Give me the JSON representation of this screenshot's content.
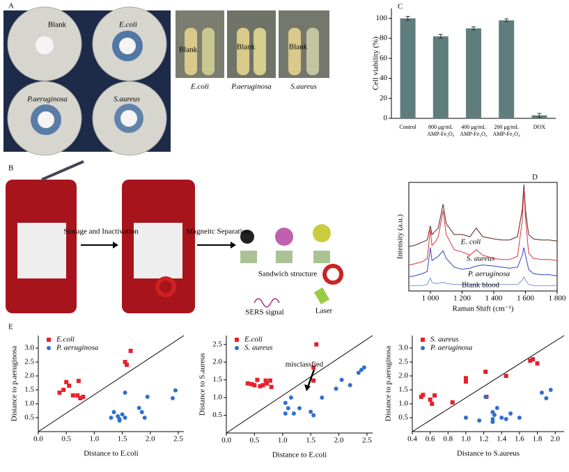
{
  "panel_labels": [
    "A",
    "B",
    "C",
    "D",
    "E"
  ],
  "photos": {
    "dishes": [
      "Blank",
      "E.coli",
      "P.aeruginosa",
      "S.aureus"
    ],
    "tubes": {
      "labels": [
        "Blank",
        "Blank",
        "Blank"
      ],
      "captions": [
        "E.coli",
        "P.aeruginosa",
        "S.aureus"
      ]
    }
  },
  "diagram": {
    "step1": "Storage and Inactivation",
    "step2": "Magneitc Separation",
    "structure": "Sandwich structure",
    "signal": "SERS signal",
    "laser": "Laser"
  },
  "chart_data": [
    {
      "type": "bar",
      "y_label": "Cell viability (%)",
      "categories": [
        "Control",
        "800 μg/mL AMP-Fe₃O₄",
        "400 μg/mL AMP-Fe₃O₄",
        "200 μg/mL AMP-Fe₃O₄",
        "DOX"
      ],
      "values": [
        100,
        82,
        90,
        98,
        3
      ],
      "errors": [
        2,
        2,
        1.5,
        1.5,
        2
      ],
      "color": "#607d7d",
      "ylim": [
        0,
        110
      ],
      "yticks": [
        0,
        20,
        40,
        60,
        80,
        100
      ]
    },
    {
      "type": "line",
      "x_label": "Raman Shift (cm⁻¹)",
      "y_label": "Intensity (a.u.)",
      "x": [
        864,
        900,
        950,
        980,
        1000,
        1010,
        1030,
        1050,
        1080,
        1100,
        1150,
        1200,
        1250,
        1290,
        1330,
        1400,
        1450,
        1500,
        1550,
        1580,
        1590,
        1600,
        1620,
        1650,
        1700,
        1750,
        1800
      ],
      "xlim": [
        864,
        1800
      ],
      "xticks": [
        {
          "value": 1000,
          "label": "1 000"
        },
        {
          "value": 1200,
          "label": "1 200"
        },
        {
          "value": 1400,
          "label": "1 400"
        },
        {
          "value": 1600,
          "label": "1 600"
        },
        {
          "value": 1800,
          "label": "1 800"
        }
      ],
      "ylim": [
        0,
        100
      ],
      "series": [
        {
          "name": "E. coli",
          "color": "#5a1e1e",
          "values": [
            41,
            42,
            45,
            47,
            60,
            52,
            55,
            58,
            80,
            62,
            52,
            52,
            50,
            58,
            50,
            48,
            47,
            47,
            50,
            75,
            98,
            75,
            52,
            48,
            47,
            47,
            46
          ]
        },
        {
          "name": "S. aureus",
          "color": "#e0303a",
          "values": [
            24,
            25,
            27,
            30,
            56,
            42,
            45,
            50,
            74,
            52,
            38,
            36,
            33,
            38,
            33,
            30,
            29,
            29,
            32,
            65,
            94,
            68,
            35,
            30,
            29,
            29,
            28
          ]
        },
        {
          "name": "P. aeruginosa",
          "color": "#3040c0",
          "values": [
            13,
            14,
            16,
            18,
            40,
            28,
            30,
            32,
            37,
            30,
            22,
            20,
            21,
            23,
            24,
            23,
            22,
            21,
            22,
            33,
            40,
            33,
            20,
            16,
            15,
            15,
            14
          ]
        },
        {
          "name": "Blank blood",
          "color": "#8090d0",
          "values": [
            5,
            5,
            5,
            6,
            12,
            8,
            7,
            7,
            8,
            7,
            6,
            6,
            6,
            6,
            6,
            6,
            6,
            6,
            6,
            10,
            13,
            10,
            6,
            5,
            5,
            5,
            5
          ]
        }
      ]
    },
    {
      "type": "scatter",
      "x_label": "Distance to E.coli",
      "y_label": "Distance to p.aeruginosa",
      "diagonal": true,
      "xlim": [
        0,
        2.6
      ],
      "ylim": [
        0,
        3.45
      ],
      "xticks": [
        {
          "value": 0,
          "label": "0.0"
        },
        0.5,
        {
          "value": 1,
          "label": "1.0"
        },
        1.5,
        {
          "value": 2,
          "label": "2.0"
        },
        2.5
      ],
      "yticks": [
        0.5,
        {
          "value": 1,
          "label": "1.0"
        },
        1.5,
        {
          "value": 2,
          "label": "2.0"
        },
        2.5,
        {
          "value": 3,
          "label": "3.0"
        }
      ],
      "series": [
        {
          "name": "E.coli",
          "color": "#e8202a",
          "marker": "square",
          "x": [
            0.38,
            0.45,
            0.5,
            0.55,
            0.62,
            0.7,
            0.72,
            0.75,
            0.8,
            1.55,
            1.58,
            1.65
          ],
          "values": [
            1.4,
            1.5,
            1.78,
            1.65,
            1.3,
            1.3,
            1.82,
            1.2,
            1.25,
            2.5,
            2.4,
            2.9
          ]
        },
        {
          "name": "P. aeruginosa",
          "color": "#2e6fd0",
          "marker": "circle",
          "x": [
            1.3,
            1.35,
            1.42,
            1.45,
            1.5,
            1.55,
            1.55,
            1.8,
            1.85,
            1.9,
            1.95,
            2.4,
            2.45,
            1.45
          ],
          "values": [
            0.5,
            0.7,
            0.55,
            0.45,
            0.62,
            0.5,
            1.4,
            0.85,
            0.7,
            0.5,
            1.25,
            1.2,
            1.48,
            0.4
          ]
        }
      ]
    },
    {
      "type": "scatter",
      "x_label": "Distance to E.coli",
      "y_label": "Distance to S.aureus",
      "diagonal": true,
      "annotation": "misclassfied",
      "xlim": [
        0,
        2.6
      ],
      "ylim": [
        0,
        2.75
      ],
      "xticks": [
        {
          "value": 0,
          "label": "0.0"
        },
        0.5,
        {
          "value": 1,
          "label": "1.0"
        },
        1.5,
        {
          "value": 2,
          "label": "2.0"
        },
        2.5
      ],
      "yticks": [
        0.5,
        {
          "value": 1,
          "label": "1.0"
        },
        1.5,
        {
          "value": 2,
          "label": "2.0"
        },
        2.5
      ],
      "series": [
        {
          "name": "E.coli",
          "color": "#e8202a",
          "marker": "square",
          "x": [
            0.38,
            0.45,
            0.5,
            0.55,
            0.6,
            0.65,
            0.7,
            0.72,
            0.78,
            0.8,
            1.55,
            1.6,
            1.55
          ],
          "values": [
            1.4,
            1.38,
            1.35,
            1.5,
            1.32,
            1.35,
            1.48,
            1.4,
            1.48,
            1.3,
            1.85,
            2.5,
            1.48
          ]
        },
        {
          "name": "S. aureus",
          "color": "#2e6fd0",
          "marker": "circle",
          "x": [
            1.05,
            1.1,
            1.15,
            1.2,
            1.3,
            1.5,
            1.55,
            1.7,
            1.95,
            2.05,
            2.2,
            2.35,
            2.4,
            2.45,
            1.05
          ],
          "values": [
            0.85,
            0.7,
            1.0,
            0.55,
            0.7,
            0.6,
            0.5,
            1.0,
            1.25,
            1.5,
            1.35,
            1.7,
            1.78,
            1.85,
            0.55
          ]
        }
      ]
    },
    {
      "type": "scatter",
      "x_label": "Distance to S.aureus",
      "y_label": "Distance to p.aeruginosa",
      "diagonal": true,
      "xlim": [
        0.4,
        2.1
      ],
      "ylim": [
        0,
        3.45
      ],
      "xticks": [
        0.4,
        0.6,
        0.8,
        {
          "value": 1,
          "label": "1.0"
        },
        1.2,
        1.4,
        1.6,
        1.8,
        {
          "value": 2,
          "label": "2.0"
        }
      ],
      "yticks": [
        0.5,
        {
          "value": 1,
          "label": "1.0"
        },
        1.5,
        {
          "value": 2,
          "label": "2.0"
        },
        2.5,
        {
          "value": 3,
          "label": "3.0"
        }
      ],
      "series": [
        {
          "name": "S. aureus",
          "color": "#e8202a",
          "marker": "square",
          "x": [
            0.5,
            0.52,
            0.6,
            0.62,
            0.65,
            0.85,
            1.0,
            1.0,
            1.22,
            1.45,
            1.72,
            1.75,
            1.8,
            1.23
          ],
          "values": [
            1.25,
            1.32,
            1.15,
            1.0,
            1.3,
            1.05,
            1.92,
            1.8,
            2.15,
            2.0,
            2.55,
            2.6,
            2.45,
            1.25
          ]
        },
        {
          "name": "P. aeruginosa",
          "color": "#2e6fd0",
          "marker": "circle",
          "x": [
            1.0,
            1.15,
            1.22,
            1.3,
            1.32,
            1.3,
            1.35,
            1.4,
            1.45,
            1.5,
            1.6,
            1.85,
            1.9,
            1.95,
            1.3
          ],
          "values": [
            0.5,
            0.4,
            1.25,
            0.7,
            0.6,
            0.45,
            0.85,
            0.5,
            0.45,
            0.65,
            0.5,
            1.4,
            1.2,
            1.5,
            0.35
          ]
        }
      ]
    }
  ]
}
